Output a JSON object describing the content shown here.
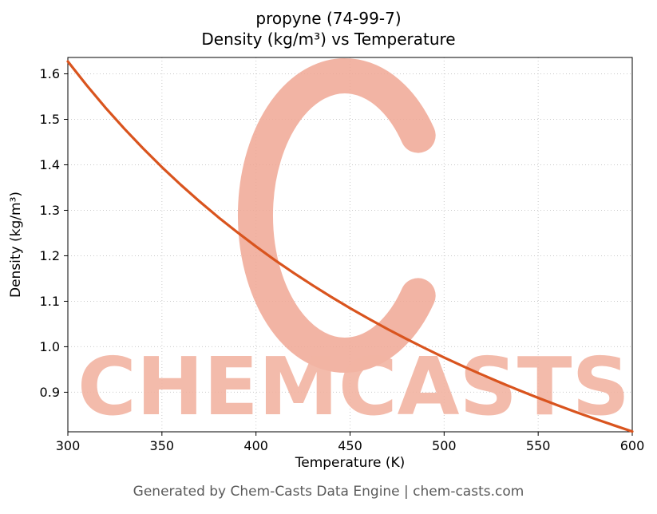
{
  "header": {
    "line1": "propyne (74-99-7)",
    "line2": "Density (kg/m³) vs Temperature"
  },
  "footer": "Generated by Chem-Casts Data Engine | chem-casts.com",
  "watermark": {
    "text": "CHEMCASTS",
    "logo": "C-brush-ring",
    "text_color": "#f2b4a3",
    "logo_color": "#f0a794"
  },
  "chart_data": {
    "type": "line",
    "title": "propyne (74-99-7) — Density (kg/m³) vs Temperature",
    "xlabel": "Temperature (K)",
    "ylabel": "Density (kg/m³)",
    "xlim": [
      300,
      600
    ],
    "ylim": [
      0.813,
      1.636
    ],
    "xticks": [
      300,
      350,
      400,
      450,
      500,
      550,
      600
    ],
    "yticks": [
      0.9,
      1.0,
      1.1,
      1.2,
      1.3,
      1.4,
      1.5,
      1.6
    ],
    "grid": true,
    "grid_style": "dotted",
    "line_color": "#d9541e",
    "x": [
      300,
      310,
      320,
      330,
      340,
      350,
      360,
      370,
      380,
      390,
      400,
      410,
      420,
      430,
      440,
      450,
      460,
      470,
      480,
      490,
      500,
      510,
      520,
      530,
      540,
      550,
      560,
      570,
      580,
      590,
      600
    ],
    "series": [
      {
        "name": "Density (kg/m³)",
        "values": [
          1.6273,
          1.5748,
          1.5256,
          1.4794,
          1.4359,
          1.3949,
          1.3561,
          1.3195,
          1.2847,
          1.2518,
          1.2205,
          1.1907,
          1.1624,
          1.1353,
          1.1095,
          1.0849,
          1.0613,
          1.0387,
          1.0171,
          0.9963,
          0.9764,
          0.9573,
          0.9388,
          0.9211,
          0.9041,
          0.8876,
          0.8718,
          0.8565,
          0.8417,
          0.8275,
          0.8137
        ]
      }
    ]
  }
}
